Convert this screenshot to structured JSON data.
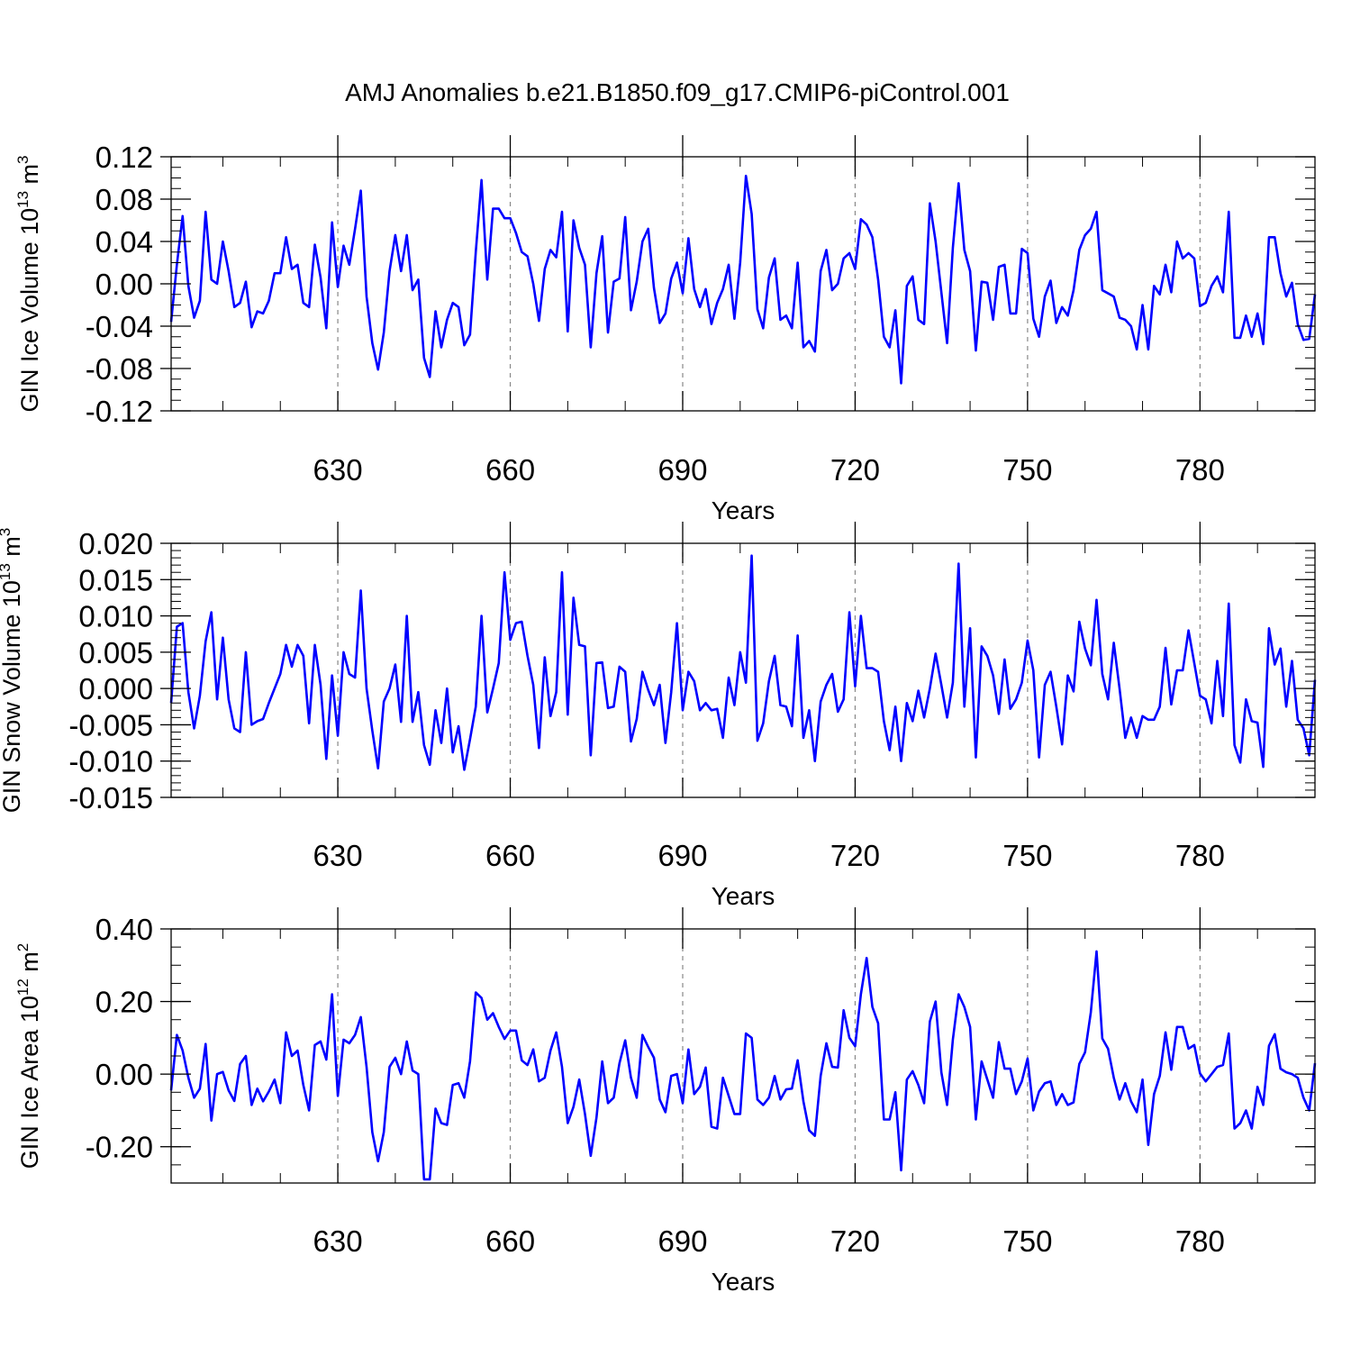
{
  "title": "AMJ Anomalies b.e21.B1850.f09_g17.CMIP6-piControl.001",
  "chart_data": [
    {
      "type": "line",
      "ylabel": "GIN Ice Volume 10",
      "ylabel_exp": "13",
      "ylabel_unit": " m",
      "ylabel_unit_exp": "3",
      "xlabel": "Years",
      "xlim": [
        601,
        800
      ],
      "ylim": [
        -0.12,
        0.12
      ],
      "xticks": [
        630,
        660,
        690,
        720,
        750,
        780
      ],
      "xtick_labels": [
        "630",
        "660",
        "690",
        "720",
        "750",
        "780"
      ],
      "yticks": [
        -0.12,
        -0.08,
        -0.04,
        0.0,
        0.04,
        0.08,
        0.12
      ],
      "ytick_labels": [
        "-0.12",
        "-0.08",
        "-0.04",
        "0.00",
        "0.04",
        "0.08",
        "0.12"
      ],
      "yminor_step": 0.01,
      "xminor_step": 10,
      "grid": "vertical dashed at major x ticks",
      "line_color": "#0000ff",
      "x_start": 601,
      "values": [
        -0.036,
        0.018,
        0.064,
        -0.002,
        -0.032,
        -0.016,
        0.068,
        0.004,
        0.0,
        0.04,
        0.012,
        -0.022,
        -0.018,
        0.002,
        -0.041,
        -0.026,
        -0.028,
        -0.016,
        0.01,
        0.01,
        0.044,
        0.014,
        0.018,
        -0.018,
        -0.022,
        0.037,
        0.006,
        -0.042,
        0.058,
        -0.003,
        0.036,
        0.018,
        0.052,
        0.088,
        -0.012,
        -0.056,
        -0.081,
        -0.046,
        0.012,
        0.046,
        0.012,
        0.046,
        -0.006,
        0.004,
        -0.07,
        -0.088,
        -0.026,
        -0.06,
        -0.034,
        -0.018,
        -0.022,
        -0.058,
        -0.048,
        0.03,
        0.098,
        0.004,
        0.071,
        0.071,
        0.062,
        0.062,
        0.048,
        0.03,
        0.026,
        0.0,
        -0.035,
        0.014,
        0.032,
        0.025,
        0.068,
        -0.045,
        0.06,
        0.034,
        0.018,
        -0.06,
        0.01,
        0.045,
        -0.046,
        0.002,
        0.005,
        0.063,
        -0.025,
        0.002,
        0.04,
        0.052,
        -0.004,
        -0.037,
        -0.028,
        0.005,
        0.02,
        -0.009,
        0.043,
        -0.005,
        -0.022,
        -0.005,
        -0.038,
        -0.018,
        -0.005,
        0.018,
        -0.033,
        0.02,
        0.102,
        0.066,
        -0.024,
        -0.042,
        0.006,
        0.024,
        -0.034,
        -0.03,
        -0.042,
        0.02,
        -0.06,
        -0.054,
        -0.064,
        0.012,
        0.032,
        -0.006,
        0.0,
        0.024,
        0.029,
        0.014,
        0.061,
        0.056,
        0.044,
        0.004,
        -0.05,
        -0.06,
        -0.025,
        -0.094,
        -0.002,
        0.007,
        -0.034,
        -0.038,
        0.076,
        0.04,
        -0.008,
        -0.056,
        0.034,
        0.095,
        0.032,
        0.012,
        -0.063,
        0.002,
        0.001,
        -0.034,
        0.016,
        0.018,
        -0.028,
        -0.028,
        0.033,
        0.029,
        -0.033,
        -0.05,
        -0.012,
        0.003,
        -0.037,
        -0.022,
        -0.03,
        -0.006,
        0.032,
        0.046,
        0.052,
        0.068,
        -0.006,
        -0.009,
        -0.012,
        -0.032,
        -0.034,
        -0.04,
        -0.062,
        -0.02,
        -0.062,
        -0.002,
        -0.01,
        0.018,
        -0.008,
        0.04,
        0.024,
        0.029,
        0.024,
        -0.021,
        -0.018,
        -0.002,
        0.007,
        -0.008,
        0.068,
        -0.051,
        -0.051,
        -0.03,
        -0.05,
        -0.028,
        -0.057,
        0.044,
        0.044,
        0.01,
        -0.012,
        0.001,
        -0.038,
        -0.053,
        -0.052,
        -0.01
      ]
    },
    {
      "type": "line",
      "ylabel": "GIN Snow Volume 10",
      "ylabel_exp": "13",
      "ylabel_unit": " m",
      "ylabel_unit_exp": "3",
      "xlabel": "Years",
      "xlim": [
        601,
        800
      ],
      "ylim": [
        -0.015,
        0.02
      ],
      "xticks": [
        630,
        660,
        690,
        720,
        750,
        780
      ],
      "xtick_labels": [
        "630",
        "660",
        "690",
        "720",
        "750",
        "780"
      ],
      "yticks": [
        -0.015,
        -0.01,
        -0.005,
        0.0,
        0.005,
        0.01,
        0.015,
        0.02
      ],
      "ytick_labels": [
        "-0.015",
        "-0.010",
        "-0.005",
        "0.000",
        "0.005",
        "0.010",
        "0.015",
        "0.020"
      ],
      "yminor_step": 0.001,
      "xminor_step": 10,
      "grid": "vertical dashed at major x ticks",
      "line_color": "#0000ff",
      "x_start": 601,
      "values": [
        -0.002,
        0.0085,
        0.009,
        -0.0005,
        -0.0055,
        -0.001,
        0.0065,
        0.0105,
        -0.0015,
        0.007,
        -0.0015,
        -0.0055,
        -0.006,
        0.005,
        -0.005,
        -0.0045,
        -0.0042,
        -0.002,
        0.0,
        0.002,
        0.006,
        0.003,
        0.006,
        0.0045,
        -0.0048,
        0.006,
        0.0005,
        -0.0097,
        0.0018,
        -0.0065,
        0.005,
        0.002,
        0.0015,
        0.0135,
        0.0,
        -0.0058,
        -0.011,
        -0.0018,
        0.0,
        0.0033,
        -0.0046,
        0.01,
        -0.0046,
        -0.0005,
        -0.0078,
        -0.0105,
        -0.003,
        -0.0075,
        0.0,
        -0.0088,
        -0.0052,
        -0.0112,
        -0.007,
        -0.0025,
        0.01,
        -0.0033,
        0.0,
        0.0035,
        0.016,
        0.0067,
        0.009,
        0.0092,
        0.0045,
        0.0005,
        -0.0082,
        0.0043,
        -0.0038,
        -0.0005,
        0.016,
        -0.0036,
        0.0125,
        0.006,
        0.0058,
        -0.0092,
        0.0035,
        0.0036,
        -0.0027,
        -0.0025,
        0.003,
        0.0023,
        -0.0073,
        -0.0042,
        0.0023,
        -0.0002,
        -0.0023,
        0.0005,
        -0.0075,
        -0.0005,
        0.009,
        -0.003,
        0.0023,
        0.001,
        -0.003,
        -0.002,
        -0.003,
        -0.0028,
        -0.0068,
        0.0015,
        -0.0023,
        0.005,
        0.0008,
        0.0183,
        -0.0072,
        -0.0048,
        0.001,
        0.0045,
        -0.0023,
        -0.0025,
        -0.0052,
        0.0073,
        -0.0068,
        -0.003,
        -0.01,
        -0.0018,
        0.0005,
        0.002,
        -0.0032,
        -0.0015,
        0.0105,
        0.0003,
        0.01,
        0.0028,
        0.0028,
        0.0023,
        -0.0045,
        -0.0085,
        -0.0025,
        -0.01,
        -0.002,
        -0.0045,
        -0.0003,
        -0.004,
        0.0,
        0.0048,
        0.0005,
        -0.004,
        0.0008,
        0.0172,
        -0.0025,
        0.0083,
        -0.0095,
        0.0058,
        0.0045,
        0.0018,
        -0.0035,
        0.004,
        -0.0028,
        -0.0015,
        0.0008,
        0.0066,
        0.0025,
        -0.0095,
        0.0005,
        0.0023,
        -0.0025,
        -0.0077,
        0.0018,
        -0.0004,
        0.0092,
        0.0055,
        0.0032,
        0.0122,
        0.002,
        -0.0015,
        0.0063,
        0.0,
        -0.0068,
        -0.004,
        -0.0068,
        -0.0038,
        -0.0043,
        -0.0043,
        -0.0025,
        0.0056,
        -0.0022,
        0.0025,
        0.0025,
        0.008,
        0.0035,
        -0.001,
        -0.0015,
        -0.0048,
        0.0038,
        -0.0038,
        0.0117,
        -0.0078,
        -0.0102,
        -0.0015,
        -0.0045,
        -0.0047,
        -0.0108,
        0.0083,
        0.0033,
        0.0055,
        -0.0025,
        0.0038,
        -0.0043,
        -0.0055,
        -0.0092,
        0.0012
      ]
    },
    {
      "type": "line",
      "ylabel": "GIN Ice Area 10",
      "ylabel_exp": "12",
      "ylabel_unit": " m",
      "ylabel_unit_exp": "2",
      "xlabel": "Years",
      "xlim": [
        601,
        800
      ],
      "ylim": [
        -0.3,
        0.4
      ],
      "xticks": [
        630,
        660,
        690,
        720,
        750,
        780
      ],
      "xtick_labels": [
        "630",
        "660",
        "690",
        "720",
        "750",
        "780"
      ],
      "yticks": [
        -0.2,
        0.0,
        0.2,
        0.4
      ],
      "ytick_labels": [
        "-0.20",
        "0.00",
        "0.20",
        "0.40"
      ],
      "yminor_step": 0.05,
      "xminor_step": 10,
      "grid": "vertical dashed at major x ticks",
      "line_color": "#0000ff",
      "x_start": 601,
      "values": [
        -0.045,
        0.108,
        0.065,
        -0.01,
        -0.065,
        -0.04,
        0.083,
        -0.128,
        0.0,
        0.006,
        -0.045,
        -0.074,
        0.028,
        0.05,
        -0.085,
        -0.04,
        -0.075,
        -0.048,
        -0.015,
        -0.08,
        0.115,
        0.05,
        0.065,
        -0.03,
        -0.1,
        0.08,
        0.09,
        0.04,
        0.22,
        -0.06,
        0.095,
        0.085,
        0.108,
        0.157,
        0.02,
        -0.16,
        -0.24,
        -0.16,
        0.02,
        0.045,
        0.0,
        0.09,
        0.01,
        0.0,
        -0.29,
        -0.29,
        -0.095,
        -0.135,
        -0.14,
        -0.03,
        -0.025,
        -0.065,
        0.035,
        0.225,
        0.21,
        0.15,
        0.168,
        0.13,
        0.097,
        0.12,
        0.12,
        0.038,
        0.025,
        0.068,
        -0.02,
        -0.01,
        0.065,
        0.115,
        0.02,
        -0.135,
        -0.09,
        -0.015,
        -0.11,
        -0.225,
        -0.12,
        0.035,
        -0.08,
        -0.065,
        0.03,
        0.093,
        -0.01,
        -0.065,
        0.108,
        0.075,
        0.045,
        -0.07,
        -0.105,
        -0.005,
        0.0,
        -0.08,
        0.068,
        -0.055,
        -0.035,
        0.018,
        -0.145,
        -0.15,
        -0.01,
        -0.06,
        -0.11,
        -0.11,
        0.112,
        0.1,
        -0.07,
        -0.085,
        -0.065,
        -0.005,
        -0.07,
        -0.042,
        -0.04,
        0.038,
        -0.075,
        -0.155,
        -0.17,
        -0.005,
        0.085,
        0.02,
        0.018,
        0.176,
        0.1,
        0.077,
        0.22,
        0.32,
        0.185,
        0.14,
        -0.125,
        -0.125,
        -0.05,
        -0.265,
        -0.015,
        0.008,
        -0.03,
        -0.08,
        0.145,
        0.2,
        0.005,
        -0.085,
        0.095,
        0.22,
        0.185,
        0.13,
        -0.125,
        0.035,
        -0.015,
        -0.065,
        0.088,
        0.015,
        0.015,
        -0.055,
        -0.02,
        0.043,
        -0.1,
        -0.048,
        -0.025,
        -0.02,
        -0.085,
        -0.055,
        -0.085,
        -0.078,
        0.028,
        0.06,
        0.17,
        0.338,
        0.098,
        0.07,
        -0.01,
        -0.07,
        -0.025,
        -0.075,
        -0.105,
        -0.015,
        -0.195,
        -0.055,
        -0.005,
        0.115,
        0.012,
        0.13,
        0.13,
        0.07,
        0.08,
        0.002,
        -0.02,
        0.0,
        0.02,
        0.025,
        0.112,
        -0.15,
        -0.135,
        -0.1,
        -0.15,
        -0.035,
        -0.085,
        0.078,
        0.11,
        0.015,
        0.005,
        0.0,
        -0.01,
        -0.065,
        -0.1,
        0.03
      ]
    }
  ]
}
